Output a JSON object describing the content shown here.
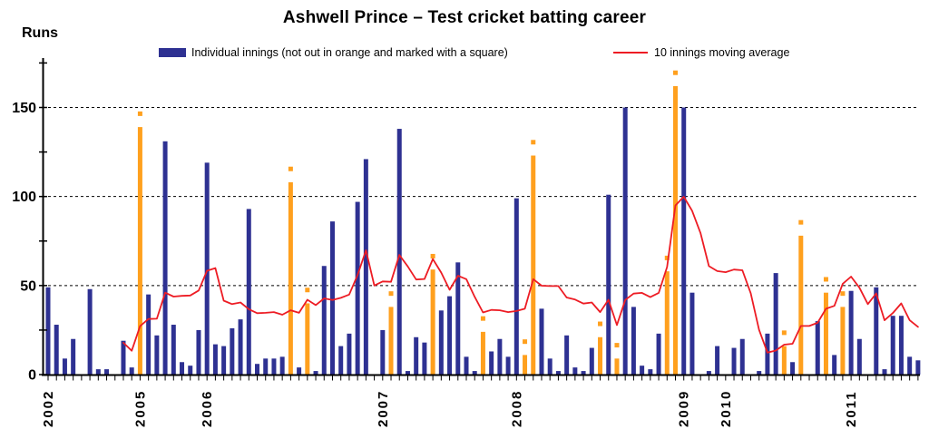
{
  "chart_data": {
    "type": "bar+line",
    "title": "Ashwell Prince – Test cricket batting career",
    "ylabel": "Runs",
    "grid": "dashed horizontal at 50/100/150",
    "legend_position": "top",
    "legend": {
      "innings_label": "Individual innings (not out in orange and marked with a square)",
      "ma_label": "10 innings moving average"
    },
    "ylim": [
      0,
      175
    ],
    "ytick_labels": [
      0,
      50,
      100,
      150
    ],
    "ytick_minor_step": 25,
    "x_axis": "one slot per Test innings, year marked at first innings of that year",
    "year_labels": [
      {
        "year": "2002",
        "index": 0
      },
      {
        "year": "2005",
        "index": 11
      },
      {
        "year": "2006",
        "index": 19
      },
      {
        "year": "2007",
        "index": 40
      },
      {
        "year": "2008",
        "index": 56
      },
      {
        "year": "2009",
        "index": 76
      },
      {
        "year": "2010",
        "index": 81
      },
      {
        "year": "2011",
        "index": 96
      }
    ],
    "series": [
      {
        "name": "Individual innings",
        "type": "bar",
        "values": [
          49,
          28,
          9,
          20,
          0,
          48,
          3,
          3,
          0,
          19,
          4,
          139,
          45,
          22,
          131,
          28,
          7,
          5,
          25,
          119,
          17,
          16,
          26,
          31,
          93,
          6,
          9,
          9,
          10,
          108,
          4,
          40,
          2,
          61,
          86,
          16,
          23,
          97,
          121,
          0,
          25,
          38,
          138,
          2,
          21,
          18,
          59,
          36,
          44,
          63,
          10,
          2,
          24,
          13,
          20,
          10,
          99,
          11,
          123,
          37,
          9,
          2,
          22,
          4,
          2,
          15,
          21,
          101,
          9,
          150,
          38,
          5,
          3,
          23,
          58,
          162,
          150,
          46,
          0,
          2,
          16,
          0,
          15,
          20,
          0,
          2,
          23,
          57,
          16,
          7,
          78,
          0,
          30,
          46,
          11,
          38,
          47,
          20,
          0,
          49,
          3,
          33,
          33,
          10,
          8
        ],
        "not_out_indices": [
          11,
          29,
          31,
          41,
          46,
          52,
          57,
          58,
          66,
          68,
          74,
          75,
          88,
          90,
          93,
          95
        ]
      },
      {
        "name": "10 innings moving average",
        "type": "line",
        "start_index": 9,
        "values": [
          17.9,
          13.4,
          27.2,
          31.2,
          31.4,
          46.0,
          43.8,
          44.2,
          44.4,
          47.2,
          58.3,
          59.8,
          41.5,
          39.6,
          40.5,
          36.7,
          34.5,
          34.7,
          35.1,
          33.6,
          36.1,
          34.7,
          42.0,
          39.0,
          42.8,
          41.9,
          43.1,
          44.9,
          55.9,
          69.8,
          50.0,
          52.3,
          52.1,
          67.2,
          60.7,
          53.4,
          53.7,
          64.9,
          57.3,
          47.6,
          55.5,
          53.6,
          43.7,
          34.9,
          36.3,
          36.1,
          35.1,
          35.7,
          37.0,
          53.6,
          49.9,
          49.7,
          49.7,
          43.3,
          42.1,
          39.9,
          40.5,
          35.1,
          42.0,
          27.8,
          41.9,
          45.5,
          45.9,
          43.5,
          45.9,
          60.4,
          95.0,
          99.9,
          92.0,
          79.4,
          60.9,
          58.1,
          57.5,
          59.0,
          58.6,
          45.7,
          25.1,
          12.4,
          13.5,
          16.8,
          17.3,
          27.3,
          27.3,
          29.1,
          37.0,
          38.6,
          51.0,
          55.0,
          48.8,
          39.6,
          45.6,
          30.5,
          34.6,
          40.0,
          30.5,
          26.8
        ]
      }
    ],
    "colors": {
      "bar_blue": "#2E3192",
      "bar_orange": "#FFA01E",
      "line_red": "#ED1C24",
      "axis_black": "#000000"
    }
  }
}
